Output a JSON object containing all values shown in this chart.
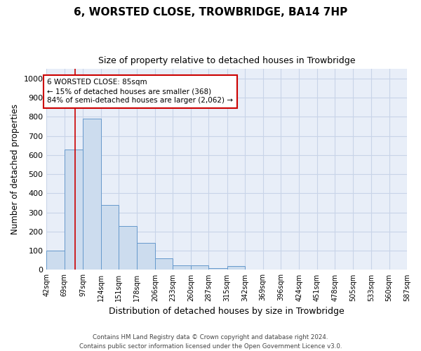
{
  "title": "6, WORSTED CLOSE, TROWBRIDGE, BA14 7HP",
  "subtitle": "Size of property relative to detached houses in Trowbridge",
  "xlabel": "Distribution of detached houses by size in Trowbridge",
  "ylabel": "Number of detached properties",
  "bar_color": "#ccdcee",
  "bar_edge_color": "#6699cc",
  "background_color": "#e8eef8",
  "grid_color": "#c8d4e8",
  "annotation_box_color": "#cc0000",
  "property_line_color": "#cc0000",
  "property_value": 85,
  "bin_edges": [
    42,
    69,
    97,
    124,
    151,
    178,
    206,
    233,
    260,
    287,
    315,
    342,
    369,
    396,
    424,
    451,
    478,
    505,
    533,
    560,
    587
  ],
  "bar_heights": [
    100,
    630,
    790,
    340,
    230,
    140,
    60,
    25,
    25,
    10,
    20,
    0,
    0,
    0,
    0,
    0,
    0,
    0,
    0,
    0
  ],
  "annotation_line1": "6 WORSTED CLOSE: 85sqm",
  "annotation_line2": "← 15% of detached houses are smaller (368)",
  "annotation_line3": "84% of semi-detached houses are larger (2,062) →",
  "footer_line1": "Contains HM Land Registry data © Crown copyright and database right 2024.",
  "footer_line2": "Contains public sector information licensed under the Open Government Licence v3.0.",
  "ylim": [
    0,
    1050
  ],
  "yticks": [
    0,
    100,
    200,
    300,
    400,
    500,
    600,
    700,
    800,
    900,
    1000
  ]
}
